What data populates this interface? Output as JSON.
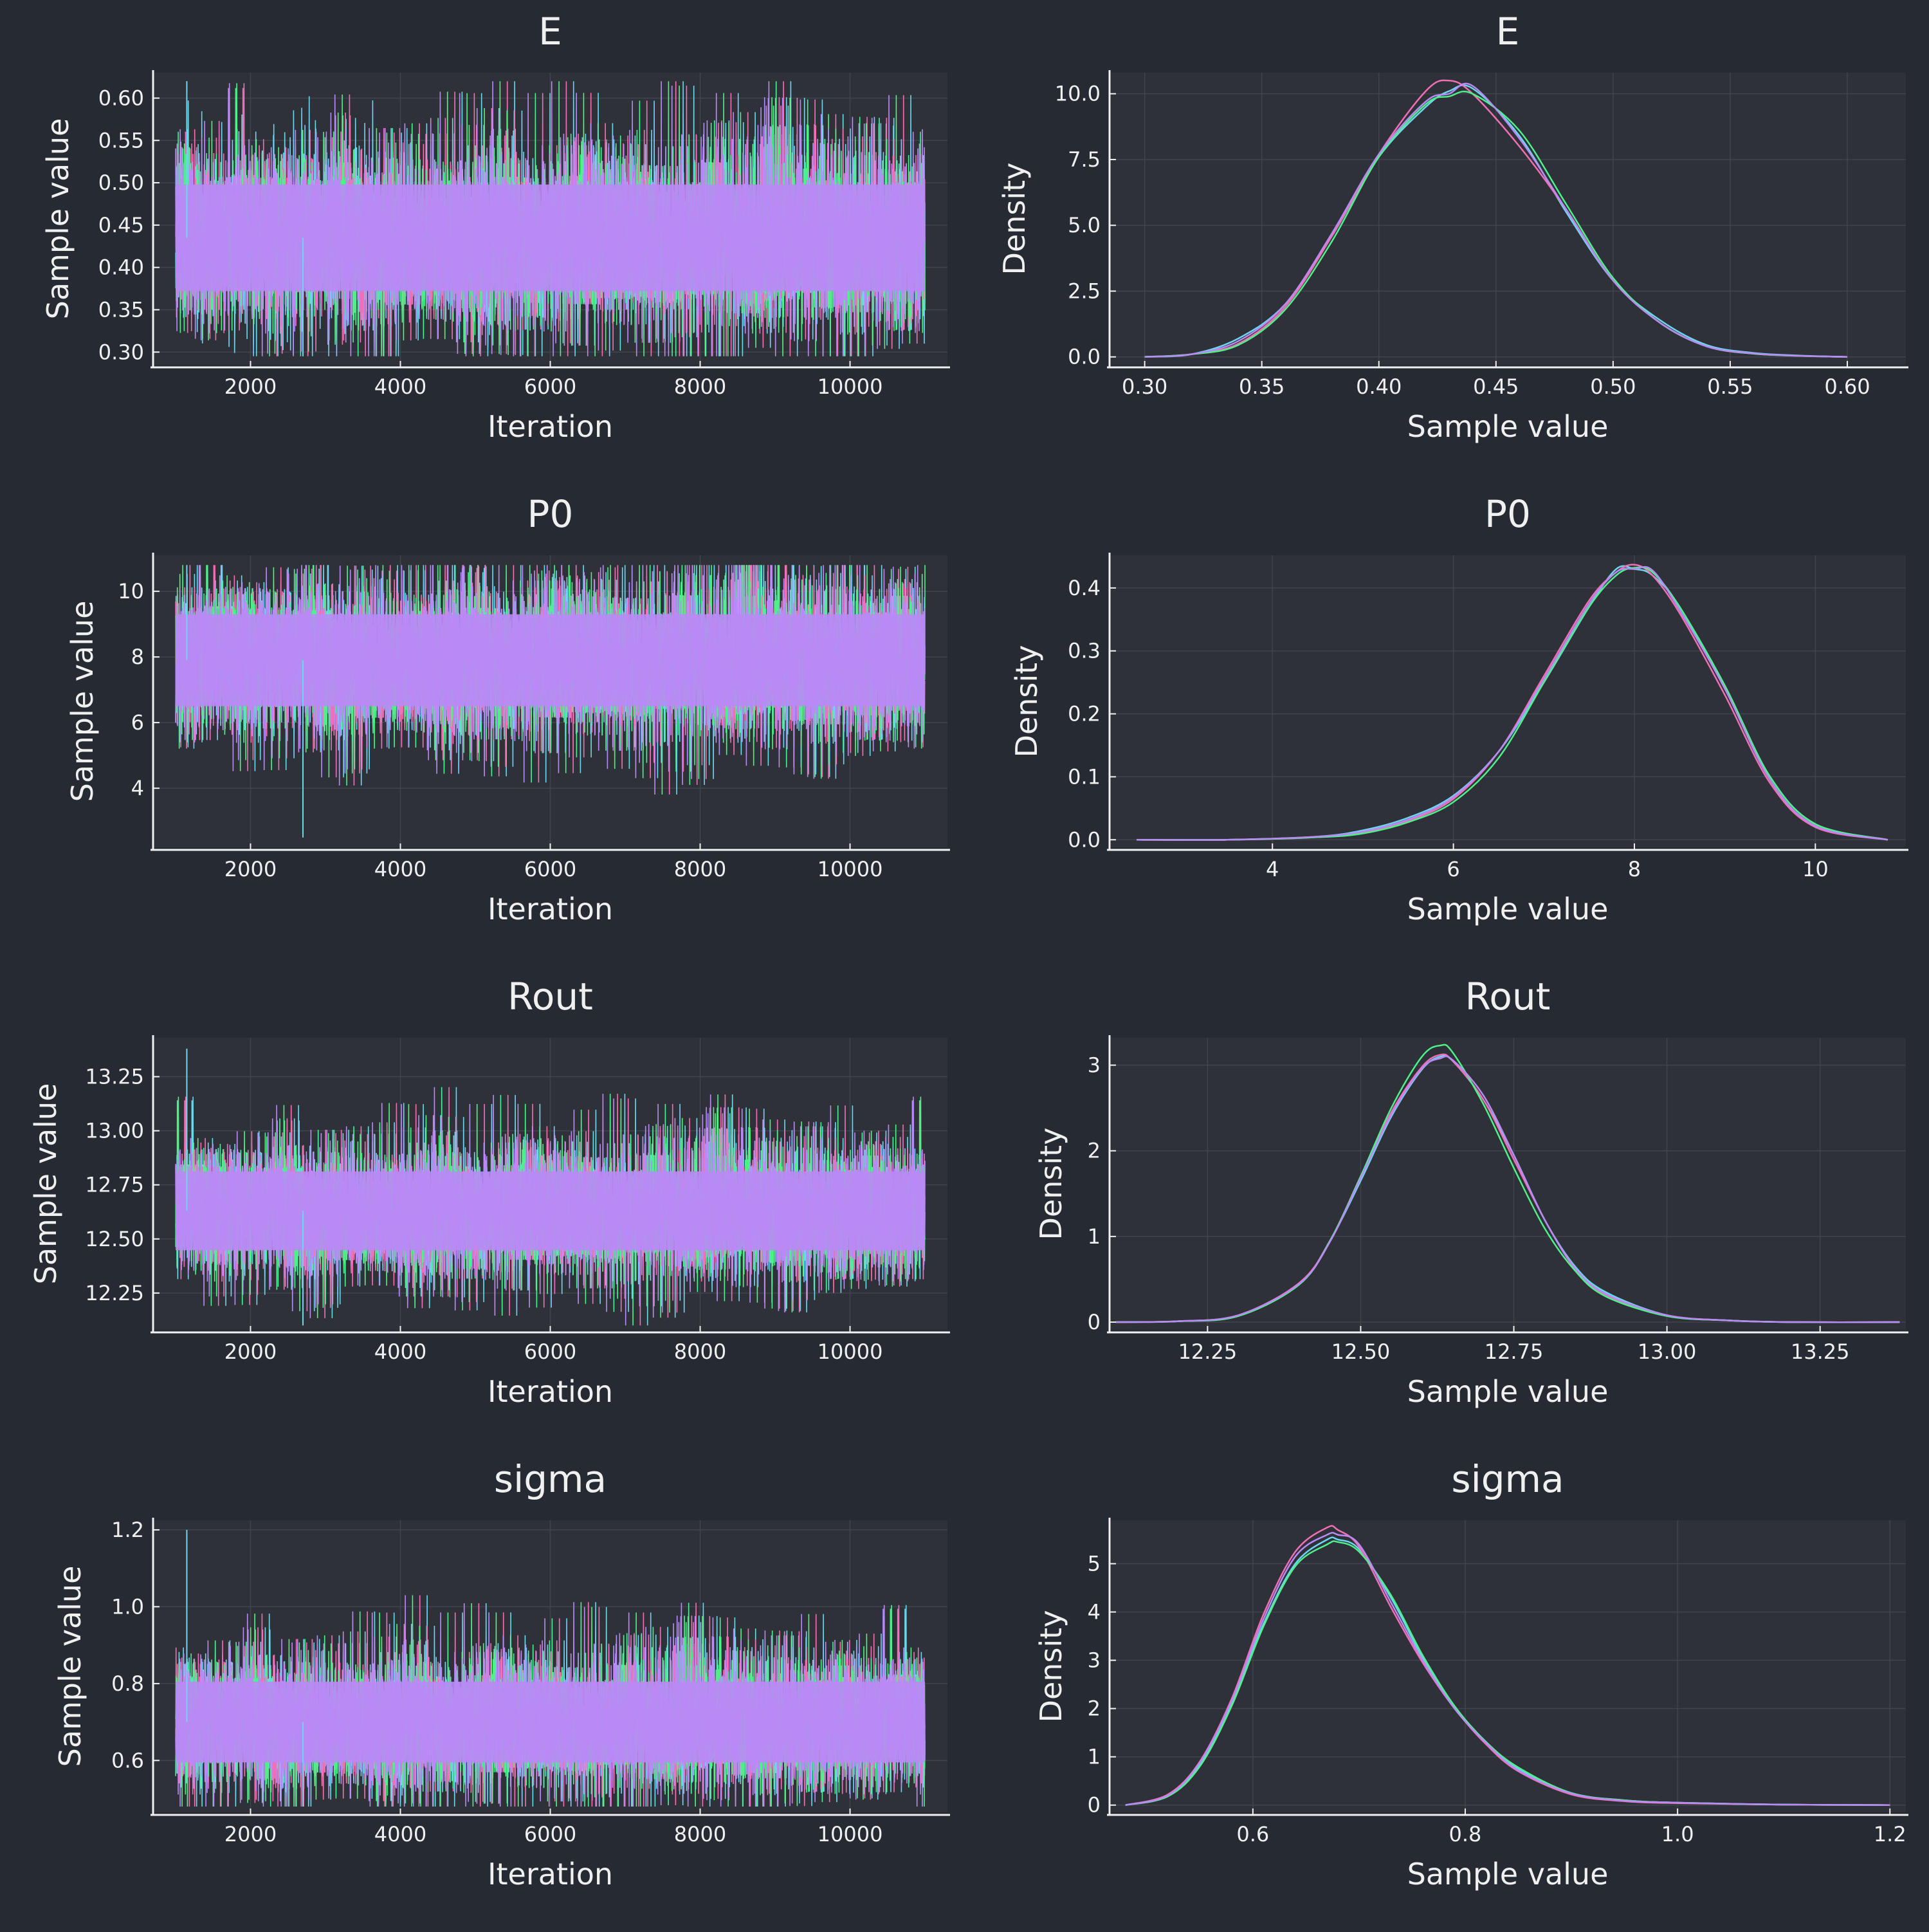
{
  "figure": {
    "background": "#262a33",
    "panel_background": "#2e3138",
    "grid_color": "#40444c",
    "axis_color": "#f0f0f0",
    "text_color": "#f0f0f0",
    "chain_colors": [
      "#6dd5f0",
      "#f06fb5",
      "#4ef08a",
      "#b98af5"
    ]
  },
  "chart_data": [
    {
      "type": "line",
      "kind": "trace",
      "title": "E",
      "xlabel": "Iteration",
      "ylabel": "Sample value",
      "xlim": [
        700,
        11300
      ],
      "ylim": [
        0.285,
        0.63
      ],
      "xticks": [
        2000,
        4000,
        6000,
        8000,
        10000
      ],
      "yticks": [
        0.3,
        0.35,
        0.4,
        0.45,
        0.5,
        0.55,
        0.6
      ],
      "ytick_labels": [
        "0.30",
        "0.35",
        "0.40",
        "0.45",
        "0.50",
        "0.55",
        "0.60"
      ],
      "iterations": [
        1001,
        11000
      ],
      "center": 0.435,
      "core_spread": 0.045,
      "extreme_low": 0.295,
      "extreme_high": 0.62,
      "grid": true,
      "chains": 4
    },
    {
      "type": "line",
      "kind": "density",
      "title": "E",
      "xlabel": "Sample value",
      "ylabel": "Density",
      "xlim": [
        0.285,
        0.625
      ],
      "ylim": [
        -0.3,
        10.8
      ],
      "xticks": [
        0.3,
        0.35,
        0.4,
        0.45,
        0.5,
        0.55,
        0.6
      ],
      "xtick_labels": [
        "0.30",
        "0.35",
        "0.40",
        "0.45",
        "0.50",
        "0.55",
        "0.60"
      ],
      "yticks": [
        0.0,
        2.5,
        5.0,
        7.5,
        10.0
      ],
      "ytick_labels": [
        "0.0",
        "2.5",
        "5.0",
        "7.5",
        "10.0"
      ],
      "grid": true,
      "series": [
        {
          "x": [
            0.3,
            0.32,
            0.34,
            0.36,
            0.38,
            0.4,
            0.42,
            0.43,
            0.44,
            0.46,
            0.48,
            0.5,
            0.52,
            0.54,
            0.56,
            0.58,
            0.6
          ],
          "y": [
            0.0,
            0.1,
            0.7,
            2.0,
            4.6,
            7.6,
            9.5,
            10.1,
            10.2,
            8.4,
            5.5,
            2.9,
            1.4,
            0.45,
            0.15,
            0.05,
            0.0
          ]
        },
        {
          "x": [
            0.3,
            0.32,
            0.34,
            0.36,
            0.38,
            0.4,
            0.42,
            0.43,
            0.44,
            0.46,
            0.48,
            0.5,
            0.52,
            0.54,
            0.56,
            0.58,
            0.6
          ],
          "y": [
            0.0,
            0.1,
            0.5,
            1.9,
            4.6,
            7.7,
            10.1,
            10.5,
            10.0,
            8.0,
            5.6,
            2.9,
            1.3,
            0.4,
            0.12,
            0.04,
            0.0
          ]
        },
        {
          "x": [
            0.3,
            0.32,
            0.34,
            0.36,
            0.38,
            0.4,
            0.42,
            0.43,
            0.44,
            0.46,
            0.48,
            0.5,
            0.52,
            0.54,
            0.56,
            0.58,
            0.6
          ],
          "y": [
            0.0,
            0.1,
            0.45,
            1.8,
            4.4,
            7.6,
            9.6,
            9.9,
            10.0,
            8.6,
            5.8,
            3.0,
            1.3,
            0.4,
            0.12,
            0.04,
            0.0
          ]
        },
        {
          "x": [
            0.3,
            0.32,
            0.34,
            0.36,
            0.38,
            0.4,
            0.42,
            0.43,
            0.44,
            0.46,
            0.48,
            0.5,
            0.52,
            0.54,
            0.56,
            0.58,
            0.6
          ],
          "y": [
            0.0,
            0.1,
            0.6,
            2.0,
            4.7,
            7.7,
            9.7,
            10.0,
            10.3,
            8.3,
            5.6,
            2.9,
            1.3,
            0.4,
            0.13,
            0.04,
            0.0
          ]
        }
      ]
    },
    {
      "type": "line",
      "kind": "trace",
      "title": "P0",
      "xlabel": "Iteration",
      "ylabel": "Sample value",
      "xlim": [
        700,
        11300
      ],
      "ylim": [
        2.2,
        11.1
      ],
      "xticks": [
        2000,
        4000,
        6000,
        8000,
        10000
      ],
      "yticks": [
        4,
        6,
        8,
        10
      ],
      "ytick_labels": [
        "4",
        "6",
        "8",
        "10"
      ],
      "iterations": [
        1001,
        11000
      ],
      "center": 7.9,
      "core_spread": 1.0,
      "extreme_low": 2.5,
      "extreme_high": 10.8,
      "grid": true,
      "chains": 4
    },
    {
      "type": "line",
      "kind": "density",
      "title": "P0",
      "xlabel": "Sample value",
      "ylabel": "Density",
      "xlim": [
        2.2,
        11.0
      ],
      "ylim": [
        -0.012,
        0.452
      ],
      "xticks": [
        4,
        6,
        8,
        10
      ],
      "xtick_labels": [
        "4",
        "6",
        "8",
        "10"
      ],
      "yticks": [
        0.0,
        0.1,
        0.2,
        0.3,
        0.4
      ],
      "ytick_labels": [
        "0.0",
        "0.1",
        "0.2",
        "0.3",
        "0.4"
      ],
      "grid": true,
      "series": [
        {
          "x": [
            2.5,
            3.5,
            4.5,
            5.0,
            5.5,
            6.0,
            6.5,
            7.0,
            7.5,
            7.8,
            8.0,
            8.2,
            8.5,
            9.0,
            9.5,
            10.0,
            10.8
          ],
          "y": [
            0.0,
            0.0,
            0.005,
            0.015,
            0.035,
            0.07,
            0.14,
            0.25,
            0.37,
            0.43,
            0.43,
            0.42,
            0.37,
            0.24,
            0.1,
            0.025,
            0.0
          ]
        },
        {
          "x": [
            2.5,
            3.5,
            4.5,
            5.0,
            5.5,
            6.0,
            6.5,
            7.0,
            7.5,
            7.8,
            8.0,
            8.2,
            8.5,
            9.0,
            9.5,
            10.0,
            10.8
          ],
          "y": [
            0.0,
            0.0,
            0.004,
            0.012,
            0.03,
            0.065,
            0.14,
            0.26,
            0.38,
            0.425,
            0.437,
            0.42,
            0.36,
            0.23,
            0.09,
            0.02,
            0.0
          ]
        },
        {
          "x": [
            2.5,
            3.5,
            4.5,
            5.0,
            5.5,
            6.0,
            6.5,
            7.0,
            7.5,
            7.8,
            8.0,
            8.2,
            8.5,
            9.0,
            9.5,
            10.0,
            10.8
          ],
          "y": [
            0.0,
            0.0,
            0.004,
            0.01,
            0.028,
            0.06,
            0.13,
            0.25,
            0.37,
            0.42,
            0.432,
            0.425,
            0.37,
            0.245,
            0.1,
            0.025,
            0.0
          ]
        },
        {
          "x": [
            2.5,
            3.5,
            4.5,
            5.0,
            5.5,
            6.0,
            6.5,
            7.0,
            7.5,
            7.8,
            8.0,
            8.2,
            8.5,
            9.0,
            9.5,
            10.0,
            10.8
          ],
          "y": [
            0.0,
            0.0,
            0.005,
            0.013,
            0.032,
            0.068,
            0.14,
            0.255,
            0.375,
            0.425,
            0.43,
            0.428,
            0.365,
            0.24,
            0.095,
            0.022,
            0.0
          ]
        }
      ]
    },
    {
      "type": "line",
      "kind": "trace",
      "title": "Rout",
      "xlabel": "Iteration",
      "ylabel": "Sample value",
      "xlim": [
        700,
        11300
      ],
      "ylim": [
        12.08,
        13.43
      ],
      "xticks": [
        2000,
        4000,
        6000,
        8000,
        10000
      ],
      "yticks": [
        12.25,
        12.5,
        12.75,
        13.0,
        13.25
      ],
      "ytick_labels": [
        "12.25",
        "12.50",
        "12.75",
        "13.00",
        "13.25"
      ],
      "iterations": [
        1001,
        11000
      ],
      "center": 12.63,
      "core_spread": 0.13,
      "extreme_low": 12.1,
      "extreme_high": 13.38,
      "grid": true,
      "chains": 4
    },
    {
      "type": "line",
      "kind": "density",
      "title": "Rout",
      "xlabel": "Sample value",
      "ylabel": "Density",
      "xlim": [
        12.09,
        13.39
      ],
      "ylim": [
        -0.09,
        3.32
      ],
      "xticks": [
        12.25,
        12.5,
        12.75,
        13.0,
        13.25
      ],
      "xtick_labels": [
        "12.25",
        "12.50",
        "12.75",
        "13.00",
        "13.25"
      ],
      "yticks": [
        0,
        1,
        2,
        3
      ],
      "ytick_labels": [
        "0",
        "1",
        "2",
        "3"
      ],
      "grid": true,
      "series": [
        {
          "x": [
            12.1,
            12.2,
            12.3,
            12.4,
            12.45,
            12.5,
            12.55,
            12.6,
            12.63,
            12.65,
            12.7,
            12.75,
            12.8,
            12.85,
            12.9,
            13.0,
            13.1,
            13.2,
            13.38
          ],
          "y": [
            0.0,
            0.01,
            0.08,
            0.45,
            0.95,
            1.65,
            2.4,
            2.95,
            3.1,
            3.05,
            2.6,
            1.95,
            1.2,
            0.65,
            0.35,
            0.08,
            0.02,
            0.0,
            0.0
          ]
        },
        {
          "x": [
            12.1,
            12.2,
            12.3,
            12.4,
            12.45,
            12.5,
            12.55,
            12.6,
            12.63,
            12.65,
            12.7,
            12.75,
            12.8,
            12.85,
            12.9,
            13.0,
            13.1,
            13.2,
            13.38
          ],
          "y": [
            0.0,
            0.01,
            0.08,
            0.46,
            0.95,
            1.7,
            2.45,
            2.98,
            3.12,
            3.05,
            2.6,
            1.9,
            1.2,
            0.62,
            0.32,
            0.08,
            0.02,
            0.0,
            0.0
          ]
        },
        {
          "x": [
            12.1,
            12.2,
            12.3,
            12.4,
            12.45,
            12.5,
            12.55,
            12.6,
            12.63,
            12.65,
            12.7,
            12.75,
            12.8,
            12.85,
            12.9,
            13.0,
            13.1,
            13.2,
            13.38
          ],
          "y": [
            0.0,
            0.01,
            0.07,
            0.44,
            0.95,
            1.7,
            2.5,
            3.1,
            3.23,
            3.15,
            2.55,
            1.8,
            1.1,
            0.6,
            0.3,
            0.07,
            0.02,
            0.0,
            0.0
          ]
        },
        {
          "x": [
            12.1,
            12.2,
            12.3,
            12.4,
            12.45,
            12.5,
            12.55,
            12.6,
            12.63,
            12.65,
            12.7,
            12.75,
            12.8,
            12.85,
            12.9,
            13.0,
            13.1,
            13.2,
            13.38
          ],
          "y": [
            0.0,
            0.01,
            0.08,
            0.45,
            0.94,
            1.68,
            2.42,
            2.96,
            3.08,
            3.06,
            2.65,
            1.95,
            1.2,
            0.63,
            0.33,
            0.08,
            0.02,
            0.0,
            0.0
          ]
        }
      ]
    },
    {
      "type": "line",
      "kind": "trace",
      "title": "sigma",
      "xlabel": "Iteration",
      "ylabel": "Sample value",
      "xlim": [
        700,
        11300
      ],
      "ylim": [
        0.465,
        1.225
      ],
      "xticks": [
        2000,
        4000,
        6000,
        8000,
        10000
      ],
      "yticks": [
        0.6,
        0.8,
        1.0,
        1.2
      ],
      "ytick_labels": [
        "0.6",
        "0.8",
        "1.0",
        "1.2"
      ],
      "iterations": [
        1001,
        11000
      ],
      "center": 0.7,
      "core_spread": 0.075,
      "extreme_low": 0.48,
      "extreme_high": 1.2,
      "grid": true,
      "chains": 4
    },
    {
      "type": "line",
      "kind": "density",
      "title": "sigma",
      "xlabel": "Sample value",
      "ylabel": "Density",
      "xlim": [
        0.465,
        1.215
      ],
      "ylim": [
        -0.15,
        5.9
      ],
      "xticks": [
        0.6,
        0.8,
        1.0,
        1.2
      ],
      "xtick_labels": [
        "0.6",
        "0.8",
        "1.0",
        "1.2"
      ],
      "yticks": [
        0,
        1,
        2,
        3,
        4,
        5
      ],
      "ytick_labels": [
        "0",
        "1",
        "2",
        "3",
        "4",
        "5"
      ],
      "grid": true,
      "series": [
        {
          "x": [
            0.48,
            0.52,
            0.55,
            0.58,
            0.61,
            0.64,
            0.67,
            0.68,
            0.7,
            0.73,
            0.76,
            0.79,
            0.82,
            0.85,
            0.9,
            0.95,
            1.0,
            1.1,
            1.2
          ],
          "y": [
            0.0,
            0.2,
            0.85,
            2.1,
            3.75,
            5.0,
            5.5,
            5.5,
            5.3,
            4.3,
            3.05,
            2.0,
            1.3,
            0.75,
            0.25,
            0.1,
            0.05,
            0.01,
            0.0
          ]
        },
        {
          "x": [
            0.48,
            0.52,
            0.55,
            0.58,
            0.61,
            0.64,
            0.67,
            0.68,
            0.7,
            0.73,
            0.76,
            0.79,
            0.82,
            0.85,
            0.9,
            0.95,
            1.0,
            1.1,
            1.2
          ],
          "y": [
            0.0,
            0.22,
            0.9,
            2.2,
            3.95,
            5.25,
            5.75,
            5.7,
            5.35,
            4.1,
            2.95,
            2.0,
            1.25,
            0.7,
            0.22,
            0.08,
            0.04,
            0.01,
            0.0
          ]
        },
        {
          "x": [
            0.48,
            0.52,
            0.55,
            0.58,
            0.61,
            0.64,
            0.67,
            0.68,
            0.7,
            0.73,
            0.76,
            0.79,
            0.82,
            0.85,
            0.9,
            0.95,
            1.0,
            1.1,
            1.2
          ],
          "y": [
            0.0,
            0.18,
            0.8,
            2.05,
            3.7,
            4.95,
            5.4,
            5.45,
            5.25,
            4.35,
            3.1,
            2.05,
            1.3,
            0.78,
            0.25,
            0.1,
            0.05,
            0.01,
            0.0
          ]
        },
        {
          "x": [
            0.48,
            0.52,
            0.55,
            0.58,
            0.61,
            0.64,
            0.67,
            0.68,
            0.7,
            0.73,
            0.76,
            0.79,
            0.82,
            0.85,
            0.9,
            0.95,
            1.0,
            1.1,
            1.2
          ],
          "y": [
            0.0,
            0.2,
            0.88,
            2.15,
            3.85,
            5.15,
            5.6,
            5.6,
            5.4,
            4.2,
            3.0,
            2.0,
            1.28,
            0.72,
            0.24,
            0.09,
            0.05,
            0.01,
            0.0
          ]
        }
      ]
    }
  ]
}
